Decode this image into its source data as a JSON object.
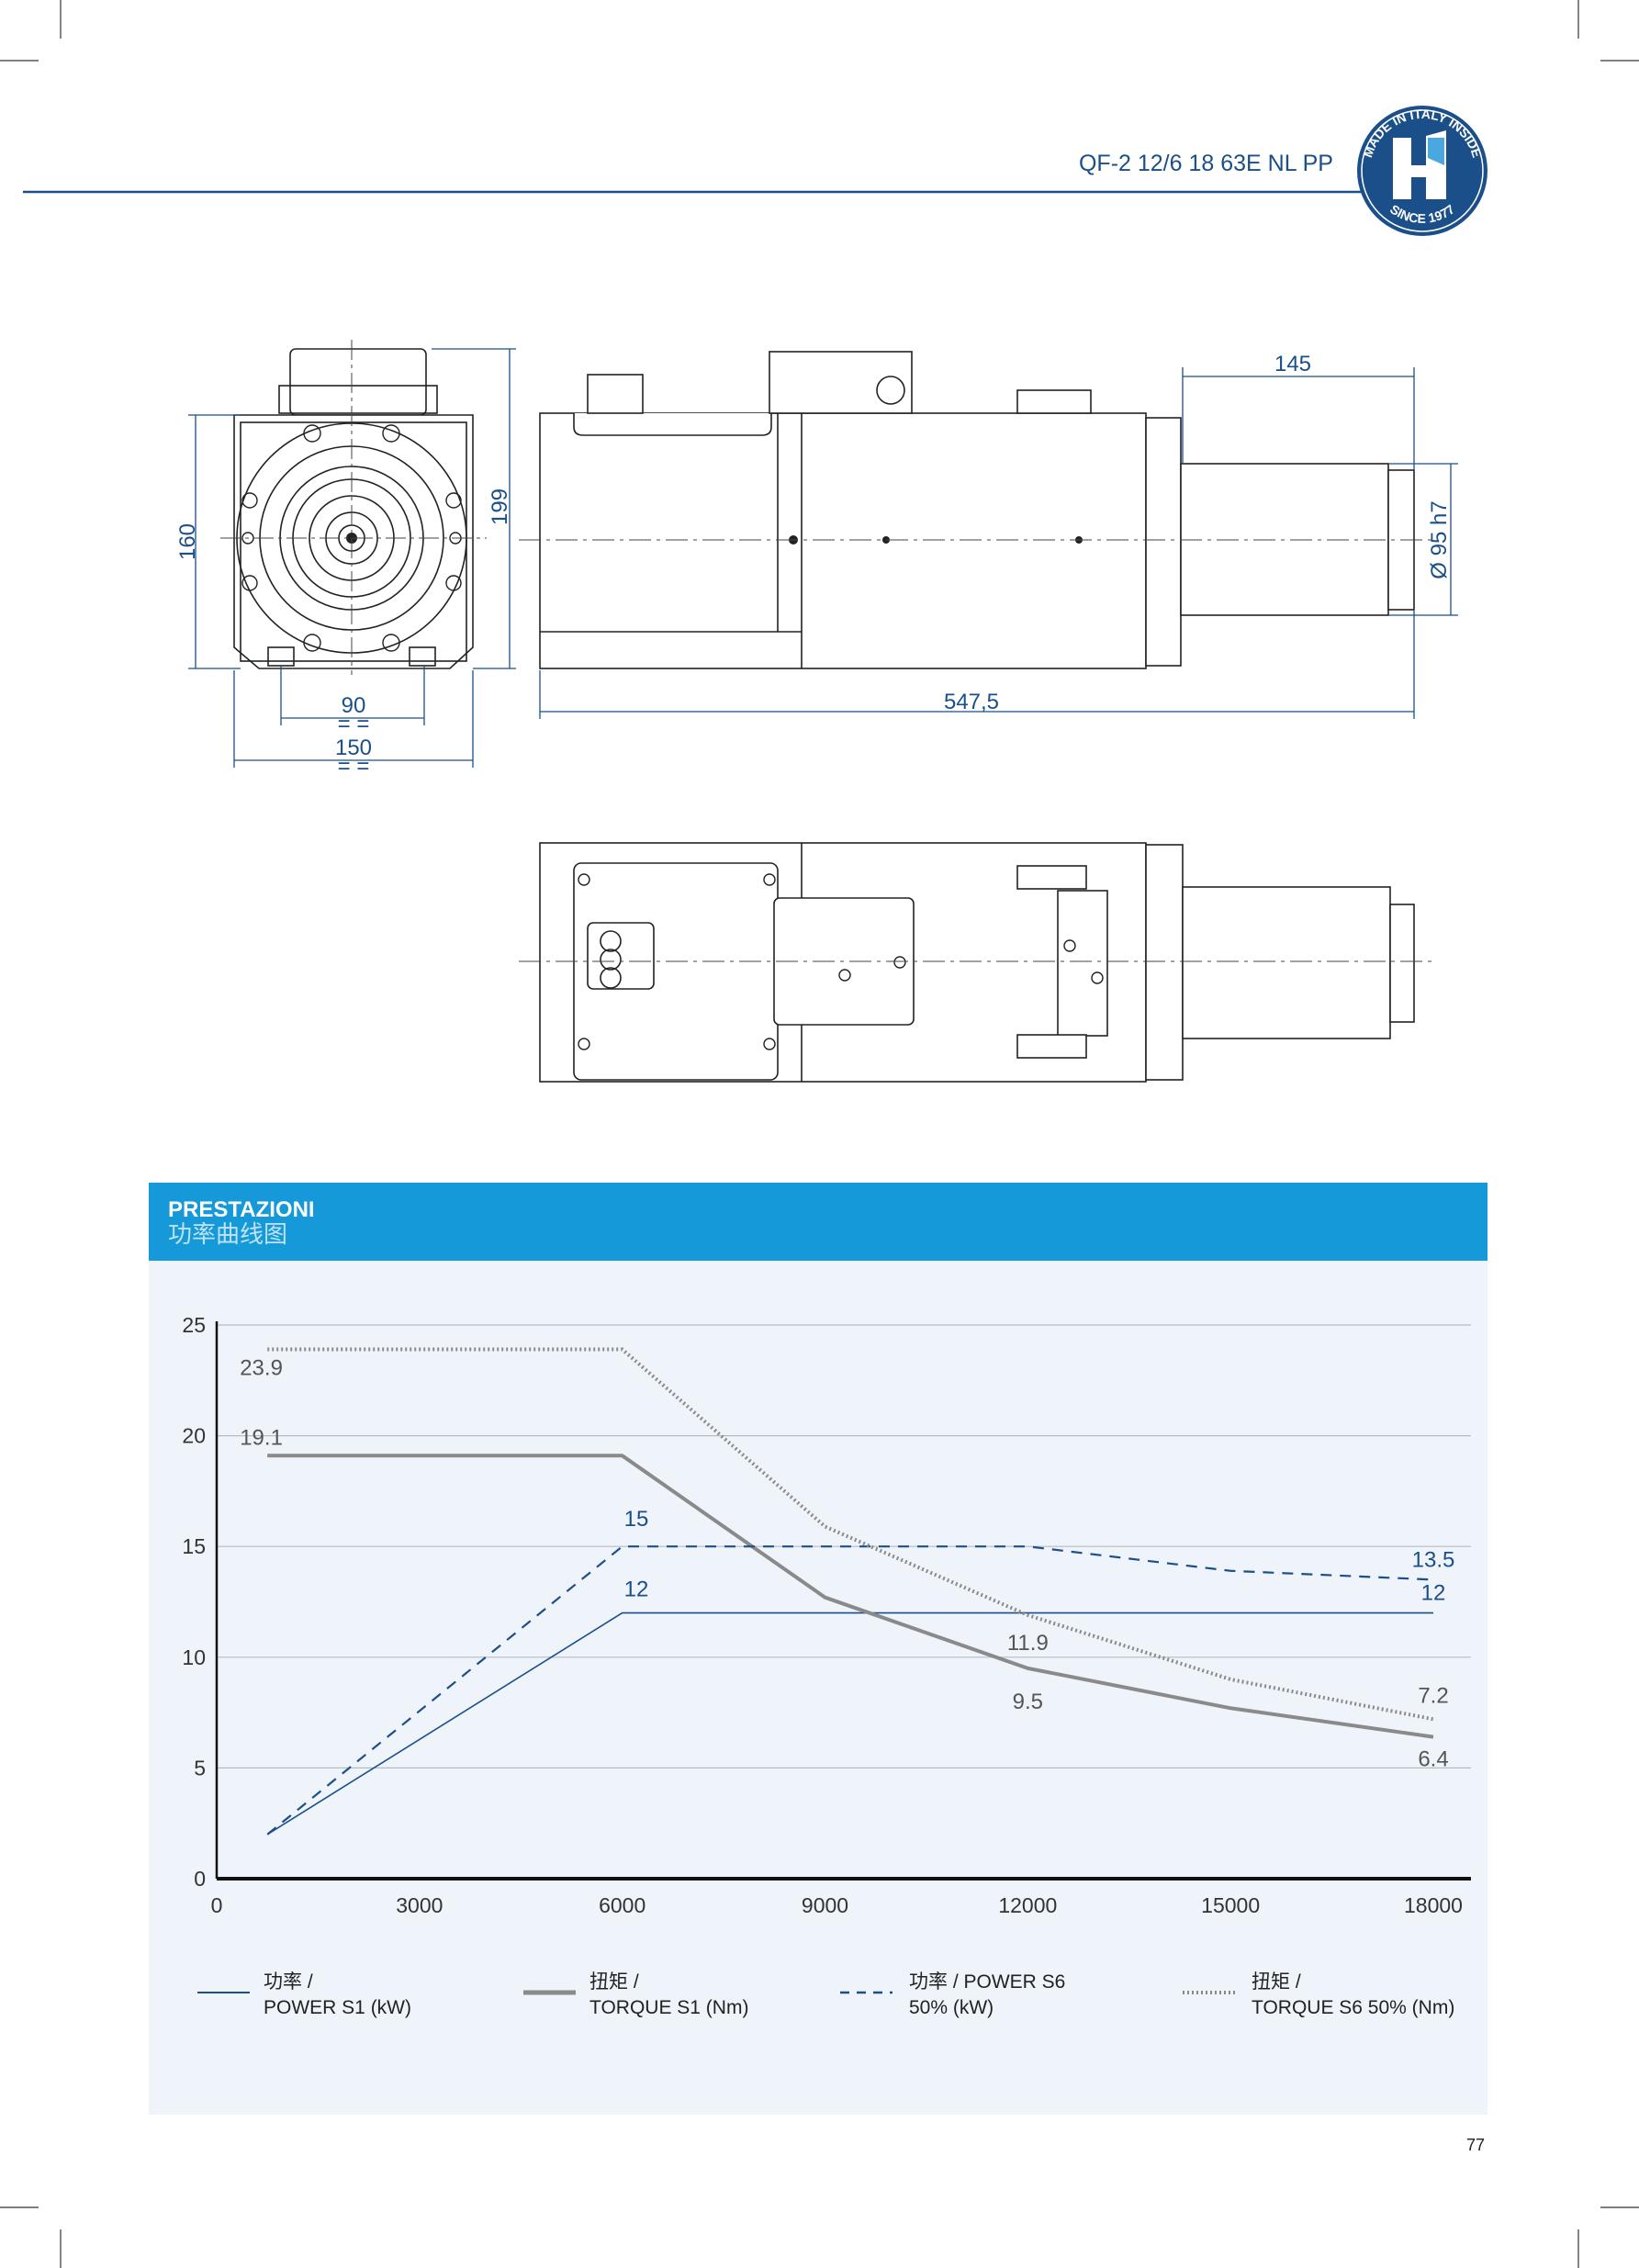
{
  "header": {
    "model": "QF-2 12/6 18 63E NL PP",
    "logo_text_top": "MADE IN ITALY INSIDE",
    "logo_text_bottom": "SINCE 1977",
    "accent": "#1b4f8a"
  },
  "drawing": {
    "dims": {
      "height_160": "160",
      "height_199": "199",
      "width_90": "90",
      "width_150": "150",
      "sym_90": "= =",
      "sym_150": "= =",
      "nose_145": "145",
      "length": "547,5",
      "diameter": "Ø 95 h7"
    }
  },
  "section": {
    "title": "PRESTAZIONI",
    "subtitle": "功率曲线图",
    "band_color": "#1599d8",
    "panel_color": "#eef4f9"
  },
  "chart_data": {
    "type": "line",
    "x_ticks": [
      "0",
      "3000",
      "6000",
      "9000",
      "12000",
      "15000",
      "18000"
    ],
    "y_ticks": [
      "0",
      "5",
      "10",
      "15",
      "20",
      "25"
    ],
    "xlim": [
      0,
      18000
    ],
    "ylim": [
      0,
      25
    ],
    "grid": true,
    "legend_position": "bottom",
    "series": [
      {
        "name_cn": "功率 /",
        "name": "POWER S1 (kW)",
        "style": "solid-thin",
        "color": "#1b4f8a",
        "x": [
          750,
          6000,
          18000
        ],
        "y": [
          2,
          12,
          12
        ]
      },
      {
        "name_cn": "扭矩 /",
        "name": "TORQUE S1 (Nm)",
        "style": "solid-thick",
        "color": "#8a8a8a",
        "x": [
          750,
          6000,
          9000,
          12000,
          15000,
          18000
        ],
        "y": [
          19.1,
          19.1,
          12.7,
          9.5,
          7.7,
          6.4
        ]
      },
      {
        "name_cn": "功率 / POWER S6",
        "name": "50% (kW)",
        "style": "dashed",
        "color": "#1b4f8a",
        "x": [
          750,
          6000,
          12000,
          15000,
          18000
        ],
        "y": [
          2,
          15,
          15,
          13.9,
          13.5
        ]
      },
      {
        "name_cn": "扭矩 /",
        "name": "TORQUE S6 50% (Nm)",
        "style": "dotted",
        "color": "#8a8a8a",
        "x": [
          750,
          6000,
          9000,
          12000,
          15000,
          18000
        ],
        "y": [
          23.9,
          23.9,
          15.9,
          11.9,
          9.0,
          7.2
        ]
      }
    ],
    "data_labels": [
      {
        "text": "23.9",
        "x": 750,
        "y": 23.9,
        "color": "#555"
      },
      {
        "text": "19.1",
        "x": 750,
        "y": 19.1,
        "color": "#555"
      },
      {
        "text": "15",
        "x": 6000,
        "y": 15,
        "color": "#1b4f8a"
      },
      {
        "text": "12",
        "x": 6000,
        "y": 12,
        "color": "#1b4f8a"
      },
      {
        "text": "11.9",
        "x": 12000,
        "y": 11.9,
        "color": "#555"
      },
      {
        "text": "9.5",
        "x": 12000,
        "y": 9.5,
        "color": "#555"
      },
      {
        "text": "13.5",
        "x": 18000,
        "y": 13.5,
        "color": "#1b4f8a"
      },
      {
        "text": "12",
        "x": 18000,
        "y": 12,
        "color": "#1b4f8a"
      },
      {
        "text": "7.2",
        "x": 18000,
        "y": 7.2,
        "color": "#555"
      },
      {
        "text": "6.4",
        "x": 18000,
        "y": 6.4,
        "color": "#555"
      }
    ]
  },
  "footer": {
    "page_number": "77"
  }
}
